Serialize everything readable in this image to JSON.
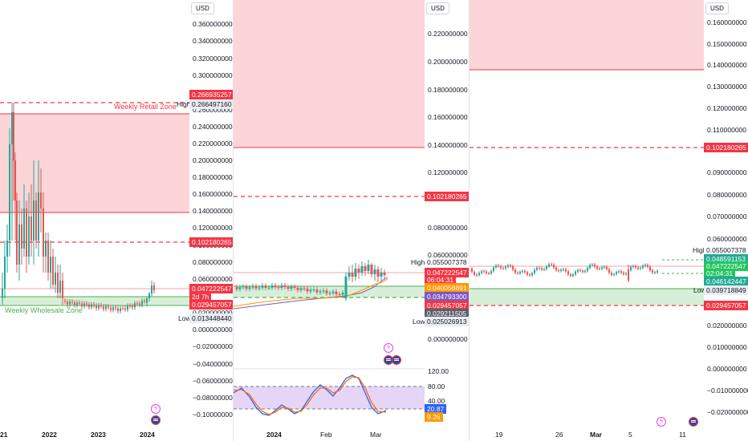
{
  "colors": {
    "zone_red": "#f23645",
    "zone_red_fill": "#fbd5d8",
    "zone_green": "#4caf50",
    "zone_green_fill": "#d7efd8",
    "stoch_fill": "#e6d5f7"
  },
  "pane1": {
    "currency": "USD",
    "y_ticks": [
      "0.360000000",
      "0.340000000",
      "0.320000000",
      "0.300000000",
      "0.260000000",
      "0.240000000",
      "0.220000000",
      "0.200000000",
      "0.180000000",
      "0.160000000",
      "0.140000000",
      "0.120000000",
      "0.100000000",
      "0.080000000",
      "0.060000000",
      "0.020000000",
      "0.000000000",
      "−0.020000000",
      "−0.040000000",
      "−0.060000000",
      "−0.080000000",
      "−0.100000000"
    ],
    "tag_top": "0.266935257",
    "high_label": "High",
    "high_value": "0.266497160",
    "tag_mid": "0.102180265",
    "price": "0.047222547",
    "countdown": "2d 7h",
    "tag_low": "0.029457057",
    "low_label": "Low",
    "low_value": "0.013448440",
    "retail_zone": "Weekly Retail Zone",
    "wholesale_zone": "Weekly Wholesale Zone",
    "x_labels": [
      "21",
      "2022",
      "2023",
      "2024"
    ]
  },
  "pane2": {
    "currency": "USD",
    "y_ticks": [
      "0.220000000",
      "0.200000000",
      "0.180000000",
      "0.160000000",
      "0.140000000",
      "0.120000000",
      "0.080000000",
      "0.060000000",
      "0.000000000"
    ],
    "tag_mid": "0.102180265",
    "high_label": "High",
    "high_value": "0.055007378",
    "price": "0.047222547",
    "countdown": "06:04:31",
    "tag_orange": "0.040058891",
    "tag_purple": "0.034793300",
    "tag_low": "0.029457057",
    "tag_gray": "0.029211505",
    "low_label": "Low",
    "low_value": "0.025026913",
    "osc_ticks": [
      "120.00",
      "80.00",
      "40.00"
    ],
    "osc_val1": "20.87",
    "osc_val2": "9.26",
    "x_labels": [
      "2024",
      "Feb",
      "Mar"
    ]
  },
  "pane3": {
    "currency": "USD",
    "y_ticks": [
      "0.160000000",
      "0.150000000",
      "0.140000000",
      "0.130000000",
      "0.120000000",
      "0.110000000",
      "0.090000000",
      "0.080000000",
      "0.070000000",
      "0.060000000",
      "0.020000000",
      "0.010000000",
      "0.000000000",
      "−0.010000000",
      "−0.020000000"
    ],
    "tag_mid": "0.102180265",
    "high_label": "High",
    "high_value": "0.055007378",
    "tag_a": "0.048591153",
    "price": "0.047222547",
    "countdown": "02:04:31",
    "tag_b": "0.046142447",
    "low_label": "Low",
    "low_value": "0.039718849",
    "tag_low": "0.029457057",
    "x_labels": [
      "19",
      "26",
      "Mar",
      "5",
      "11"
    ]
  }
}
